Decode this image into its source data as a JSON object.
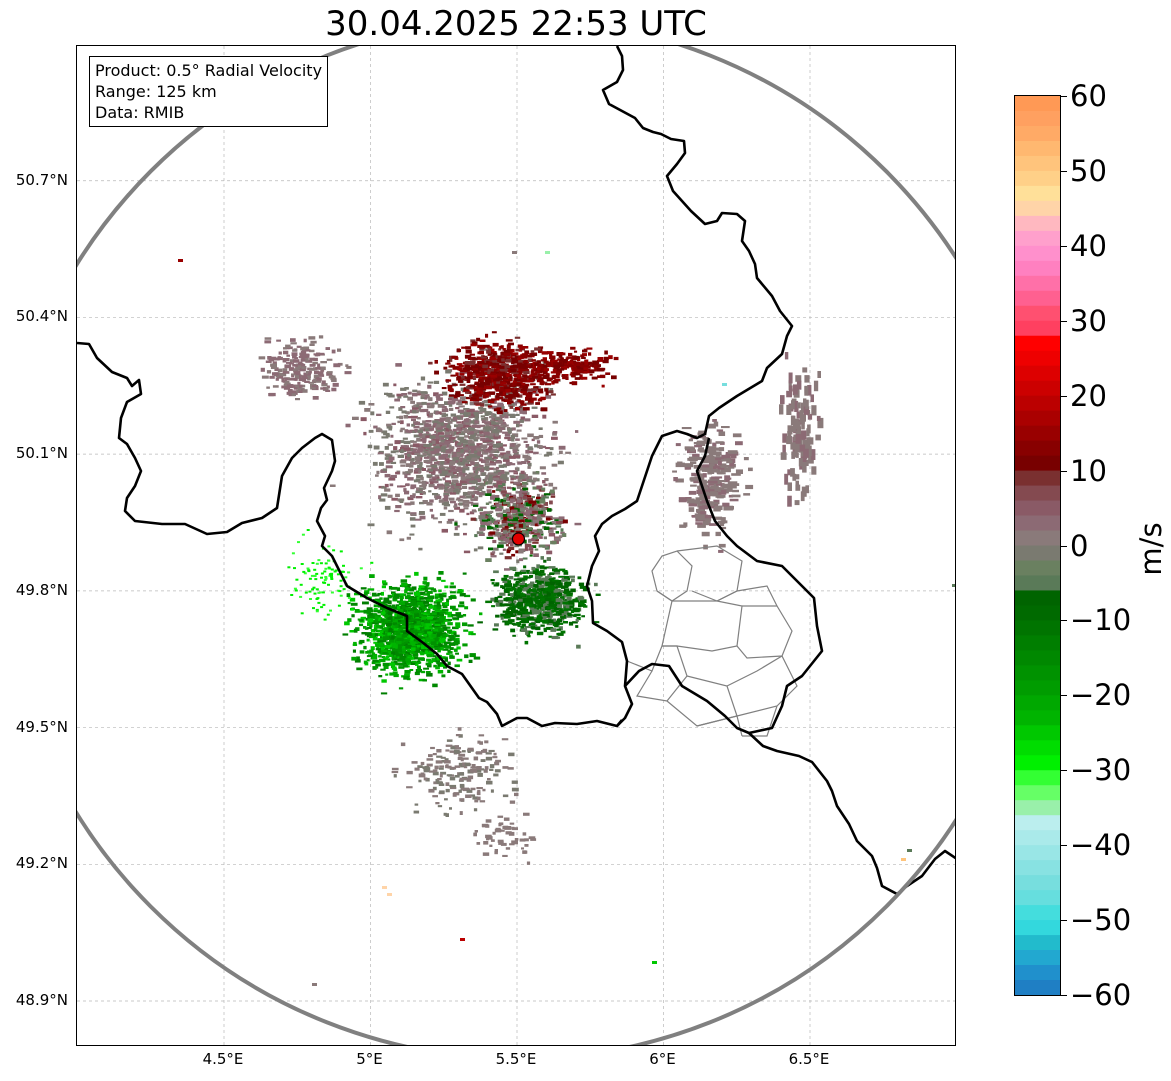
{
  "title": "30.04.2025 22:53 UTC",
  "info_box": {
    "product": "Product: 0.5° Radial Velocity",
    "range": "Range: 125 km",
    "data": "Data: RMIB"
  },
  "map": {
    "lat_ticks": [
      {
        "value": 50.7,
        "label": "50.7°N"
      },
      {
        "value": 50.4,
        "label": "50.4°N"
      },
      {
        "value": 50.1,
        "label": "50.1°N"
      },
      {
        "value": 49.8,
        "label": "49.8°N"
      },
      {
        "value": 49.5,
        "label": "49.5°N"
      },
      {
        "value": 49.2,
        "label": "49.2°N"
      },
      {
        "value": 48.9,
        "label": "48.9°N"
      }
    ],
    "lon_ticks": [
      {
        "value": 4.5,
        "label": "4.5°E"
      },
      {
        "value": 5.0,
        "label": "5°E"
      },
      {
        "value": 5.5,
        "label": "5.5°E"
      },
      {
        "value": 6.0,
        "label": "6°E"
      },
      {
        "value": 6.5,
        "label": "6.5°E"
      }
    ],
    "extent": {
      "lon_min": 4.0,
      "lon_max": 7.0,
      "lat_min": 48.8,
      "lat_max": 51.0
    },
    "radar_site": {
      "lon": 5.505,
      "lat": 49.914
    },
    "range_ring_color": "#808080",
    "border_color": "#000000",
    "admin_border_color": "#808080",
    "radar_marker_color": "#e00000"
  },
  "colorbar": {
    "unit": "m/s",
    "min": -60,
    "max": 60,
    "ticks": [
      {
        "value": 60,
        "label": "60"
      },
      {
        "value": 50,
        "label": "50"
      },
      {
        "value": 40,
        "label": "40"
      },
      {
        "value": 30,
        "label": "30"
      },
      {
        "value": 20,
        "label": "20"
      },
      {
        "value": 10,
        "label": "10"
      },
      {
        "value": 0,
        "label": "0"
      },
      {
        "value": -10,
        "label": "−10"
      },
      {
        "value": -20,
        "label": "−20"
      },
      {
        "value": -30,
        "label": "−30"
      },
      {
        "value": -40,
        "label": "−40"
      },
      {
        "value": -50,
        "label": "−50"
      },
      {
        "value": -60,
        "label": "−60"
      }
    ],
    "stops": [
      {
        "from": 58,
        "to": 60,
        "color": "#ff9955"
      },
      {
        "from": 56,
        "to": 58,
        "color": "#ffa060"
      },
      {
        "from": 54,
        "to": 56,
        "color": "#ffaa66"
      },
      {
        "from": 52,
        "to": 54,
        "color": "#ffb870"
      },
      {
        "from": 50,
        "to": 52,
        "color": "#ffc47c"
      },
      {
        "from": 48,
        "to": 50,
        "color": "#ffd088"
      },
      {
        "from": 46,
        "to": 48,
        "color": "#ffe099"
      },
      {
        "from": 44,
        "to": 46,
        "color": "#ffd4a8"
      },
      {
        "from": 42,
        "to": 44,
        "color": "#ffb8c0"
      },
      {
        "from": 40,
        "to": 42,
        "color": "#ffa0cc"
      },
      {
        "from": 38,
        "to": 40,
        "color": "#ff90cc"
      },
      {
        "from": 36,
        "to": 38,
        "color": "#ff80c0"
      },
      {
        "from": 34,
        "to": 36,
        "color": "#ff70a8"
      },
      {
        "from": 32,
        "to": 34,
        "color": "#ff6090"
      },
      {
        "from": 30,
        "to": 32,
        "color": "#ff5070"
      },
      {
        "from": 28,
        "to": 30,
        "color": "#ff4060"
      },
      {
        "from": 26,
        "to": 28,
        "color": "#ff0000"
      },
      {
        "from": 24,
        "to": 26,
        "color": "#ee0000"
      },
      {
        "from": 22,
        "to": 24,
        "color": "#dd0000"
      },
      {
        "from": 20,
        "to": 22,
        "color": "#cc0000"
      },
      {
        "from": 18,
        "to": 20,
        "color": "#bb0000"
      },
      {
        "from": 16,
        "to": 18,
        "color": "#aa0000"
      },
      {
        "from": 14,
        "to": 16,
        "color": "#990000"
      },
      {
        "from": 12,
        "to": 14,
        "color": "#880000"
      },
      {
        "from": 10,
        "to": 12,
        "color": "#780000"
      },
      {
        "from": 8,
        "to": 10,
        "color": "#7a3030"
      },
      {
        "from": 6,
        "to": 8,
        "color": "#844a50"
      },
      {
        "from": 4,
        "to": 6,
        "color": "#8a5a66"
      },
      {
        "from": 2,
        "to": 4,
        "color": "#8c6a74"
      },
      {
        "from": 0,
        "to": 2,
        "color": "#8a7a7a"
      },
      {
        "from": -2,
        "to": 0,
        "color": "#7a7a70"
      },
      {
        "from": -4,
        "to": -2,
        "color": "#6a8060"
      },
      {
        "from": -6,
        "to": -4,
        "color": "#5a7a58"
      },
      {
        "from": -8,
        "to": -6,
        "color": "#006400"
      },
      {
        "from": -10,
        "to": -8,
        "color": "#006a00"
      },
      {
        "from": -12,
        "to": -10,
        "color": "#007400"
      },
      {
        "from": -14,
        "to": -12,
        "color": "#007e00"
      },
      {
        "from": -16,
        "to": -14,
        "color": "#008800"
      },
      {
        "from": -18,
        "to": -16,
        "color": "#009200"
      },
      {
        "from": -20,
        "to": -18,
        "color": "#009c00"
      },
      {
        "from": -22,
        "to": -20,
        "color": "#00a800"
      },
      {
        "from": -24,
        "to": -22,
        "color": "#00b400"
      },
      {
        "from": -26,
        "to": -24,
        "color": "#00c800"
      },
      {
        "from": -28,
        "to": -26,
        "color": "#00dd00"
      },
      {
        "from": -30,
        "to": -28,
        "color": "#00f000"
      },
      {
        "from": -32,
        "to": -30,
        "color": "#33ff33"
      },
      {
        "from": -34,
        "to": -32,
        "color": "#66ff66"
      },
      {
        "from": -36,
        "to": -34,
        "color": "#99f0aa"
      },
      {
        "from": -38,
        "to": -36,
        "color": "#bbeeee"
      },
      {
        "from": -40,
        "to": -38,
        "color": "#aaeaea"
      },
      {
        "from": -42,
        "to": -40,
        "color": "#99e6e6"
      },
      {
        "from": -44,
        "to": -42,
        "color": "#88e2e2"
      },
      {
        "from": -46,
        "to": -44,
        "color": "#77dede"
      },
      {
        "from": -48,
        "to": -46,
        "color": "#66dede"
      },
      {
        "from": -50,
        "to": -48,
        "color": "#44dddd"
      },
      {
        "from": -52,
        "to": -50,
        "color": "#33d8dd"
      },
      {
        "from": -54,
        "to": -52,
        "color": "#22bbcc"
      },
      {
        "from": -56,
        "to": -54,
        "color": "#22a8d0"
      },
      {
        "from": -58,
        "to": -56,
        "color": "#2090cc"
      },
      {
        "from": -60,
        "to": -58,
        "color": "#1f7fc4"
      }
    ]
  }
}
